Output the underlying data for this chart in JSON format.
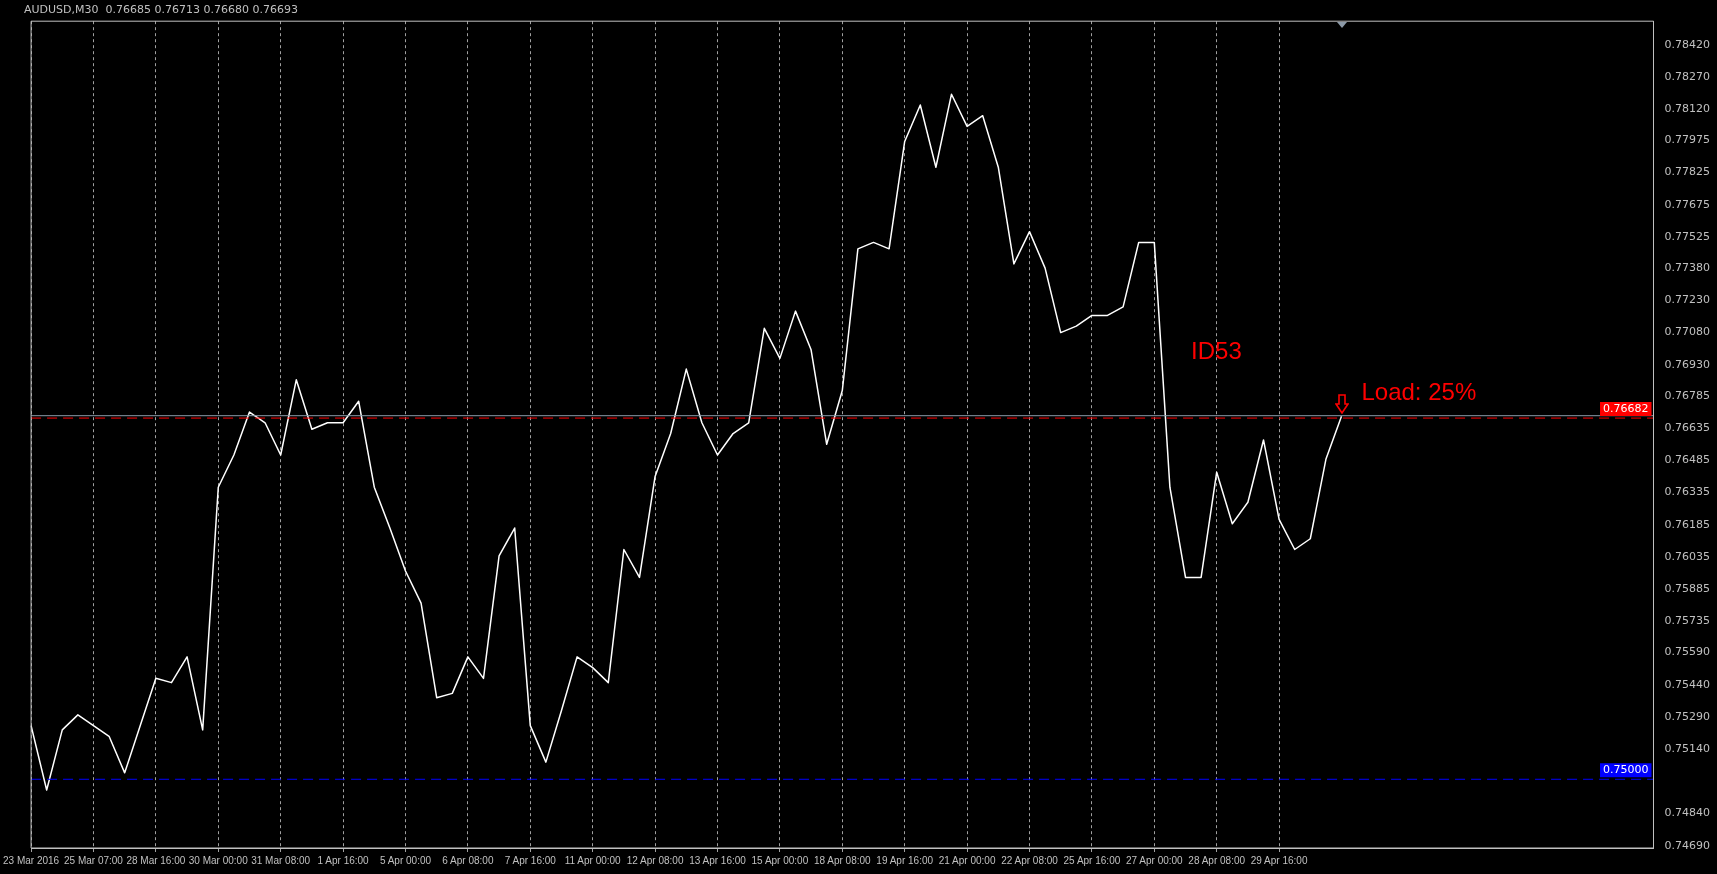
{
  "chart_data": {
    "type": "line",
    "title": "AUDUSD,M30  0.76685 0.76713 0.76680 0.76693",
    "categories": [
      "23 Mar 2016",
      null,
      null,
      null,
      "25 Mar 07:00",
      null,
      null,
      null,
      "28 Mar 16:00",
      null,
      null,
      null,
      "30 Mar 00:00",
      null,
      null,
      null,
      "31 Mar 08:00",
      null,
      null,
      null,
      "1 Apr 16:00",
      null,
      null,
      null,
      "5 Apr 00:00",
      null,
      null,
      null,
      "6 Apr 08:00",
      null,
      null,
      null,
      "7 Apr 16:00",
      null,
      null,
      null,
      "11 Apr 00:00",
      null,
      null,
      null,
      "12 Apr 08:00",
      null,
      null,
      null,
      "13 Apr 16:00",
      null,
      null,
      null,
      "15 Apr 00:00",
      null,
      null,
      null,
      "18 Apr 08:00",
      null,
      null,
      null,
      "19 Apr 16:00",
      null,
      null,
      null,
      "21 Apr 00:00",
      null,
      null,
      null,
      "22 Apr 08:00",
      null,
      null,
      null,
      "25 Apr 16:00",
      null,
      null,
      null,
      "27 Apr 00:00",
      null,
      null,
      null,
      "28 Apr 08:00",
      null,
      null,
      null,
      "29 Apr 16:00",
      null,
      null,
      null,
      null,
      null,
      null,
      null,
      null,
      null,
      null,
      null,
      null,
      null,
      null,
      null,
      null,
      null,
      null,
      null,
      null,
      null,
      null,
      null,
      null
    ],
    "series": [
      {
        "color": "#ffffff",
        "values": [
          0.7525,
          0.7495,
          0.7523,
          0.753,
          0.7525,
          0.752,
          0.7503,
          0.7525,
          0.7547,
          0.7545,
          0.7557,
          0.7523,
          0.7636,
          0.7651,
          0.7671,
          0.7666,
          0.7651,
          0.7686,
          0.7663,
          0.7666,
          0.7666,
          0.7676,
          0.7636,
          0.7617,
          0.7597,
          0.7582,
          0.7538,
          0.754,
          0.7557,
          0.7547,
          0.7604,
          0.7617,
          0.7525,
          0.7508,
          0.7532,
          0.7557,
          0.7552,
          0.7545,
          0.7607,
          0.7594,
          0.7641,
          0.7661,
          0.7691,
          0.7666,
          0.7651,
          0.7661,
          0.7666,
          0.771,
          0.7696,
          0.7718,
          0.77,
          0.7656,
          0.7681,
          0.7747,
          0.775,
          0.7747,
          0.7797,
          0.7814,
          0.7785,
          0.7819,
          0.7804,
          0.7809,
          0.7785,
          0.774,
          0.7755,
          0.7738,
          0.7708,
          0.7711,
          0.7716,
          0.7716,
          0.772,
          0.775,
          0.775,
          0.7636,
          0.7594,
          0.7594,
          0.7643,
          0.7619,
          0.7629,
          0.7658,
          0.7621,
          0.7607,
          0.7612,
          0.7649,
          0.7669,
          null,
          null,
          null,
          null,
          null,
          null,
          null,
          null,
          null,
          null,
          null,
          null,
          null,
          null,
          null,
          null,
          null,
          null,
          null,
          null
        ]
      }
    ],
    "ylim": [
      0.7468,
      0.7853
    ],
    "yticks": [
      {
        "value": 0.7842,
        "label": "0.78420"
      },
      {
        "value": 0.7827,
        "label": "0.78270"
      },
      {
        "value": 0.7812,
        "label": "0.78120"
      },
      {
        "value": 0.77975,
        "label": "0.77975"
      },
      {
        "value": 0.77825,
        "label": "0.77825"
      },
      {
        "value": 0.77675,
        "label": "0.77675"
      },
      {
        "value": 0.77525,
        "label": "0.77525"
      },
      {
        "value": 0.7738,
        "label": "0.77380"
      },
      {
        "value": 0.7723,
        "label": "0.77230"
      },
      {
        "value": 0.7708,
        "label": "0.77080"
      },
      {
        "value": 0.7693,
        "label": "0.76930"
      },
      {
        "value": 0.76785,
        "label": "0.76785"
      },
      {
        "value": 0.76635,
        "label": "0.76635"
      },
      {
        "value": 0.76485,
        "label": "0.76485"
      },
      {
        "value": 0.76335,
        "label": "0.76335"
      },
      {
        "value": 0.76185,
        "label": "0.76185"
      },
      {
        "value": 0.76035,
        "label": "0.76035"
      },
      {
        "value": 0.75885,
        "label": "0.75885"
      },
      {
        "value": 0.75735,
        "label": "0.75735"
      },
      {
        "value": 0.7559,
        "label": "0.75590"
      },
      {
        "value": 0.7544,
        "label": "0.75440"
      },
      {
        "value": 0.7529,
        "label": "0.75290"
      },
      {
        "value": 0.7514,
        "label": "0.75140"
      },
      {
        "value": 0.7484,
        "label": "0.74840"
      },
      {
        "value": 0.7469,
        "label": "0.74690"
      }
    ],
    "grid": "x",
    "marker": "none",
    "line_style": "solid",
    "legend": false,
    "ref_lines": [
      {
        "axis": "y",
        "value": 0.76693,
        "label": null,
        "color": "#8c9aa8",
        "line_style": "solid"
      },
      {
        "axis": "y",
        "value": 0.76682,
        "label": "0.76682",
        "color": "#ff0000",
        "line_style": "dashed"
      },
      {
        "axis": "y",
        "value": 0.75,
        "label": "0.75000",
        "color": "#0000ff",
        "line_style": "dashed"
      }
    ],
    "annotations": [
      "ID53",
      "Load: 25%"
    ]
  }
}
